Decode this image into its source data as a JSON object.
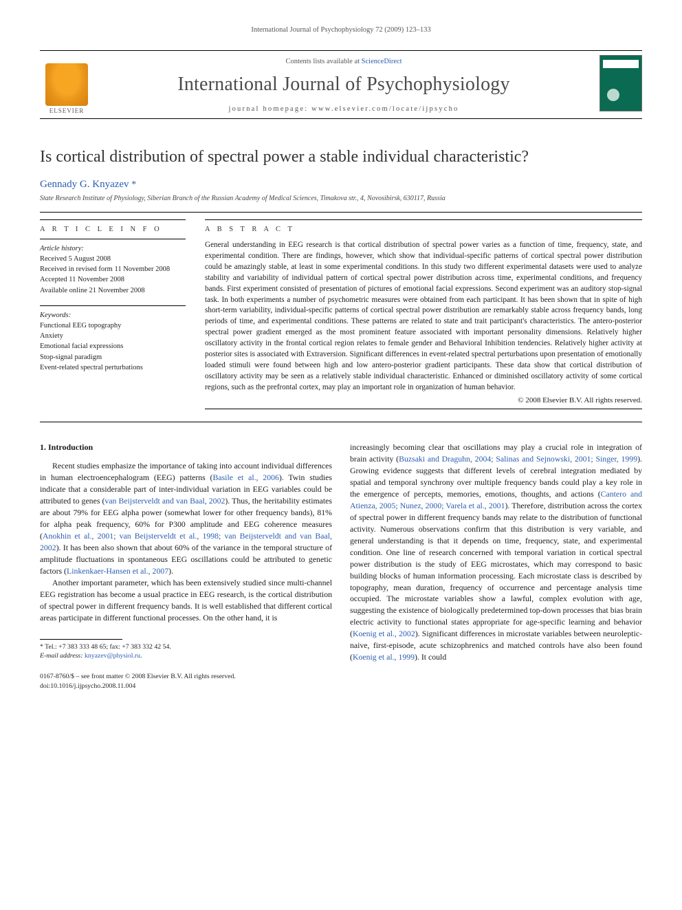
{
  "running_header": "International Journal of Psychophysiology 72 (2009) 123–133",
  "masthead": {
    "contents_prefix": "Contents lists available at ",
    "contents_link": "ScienceDirect",
    "journal": "International Journal of Psychophysiology",
    "homepage_prefix": "journal homepage: ",
    "homepage": "www.elsevier.com/locate/ijpsycho",
    "elsevier_label": "ELSEVIER",
    "logo_color": "#f6a623",
    "cover_color": "#0a6b52"
  },
  "title": "Is cortical distribution of spectral power a stable individual characteristic?",
  "author": "Gennady G. Knyazev",
  "author_marker": "*",
  "affiliation": "State Research Institute of Physiology, Siberian Branch of the Russian Academy of Medical Sciences, Timakova str., 4, Novosibirsk, 630117, Russia",
  "article_info": {
    "heading": "A R T I C L E   I N F O",
    "history_label": "Article history:",
    "history": [
      "Received 5 August 2008",
      "Received in revised form 11 November 2008",
      "Accepted 11 November 2008",
      "Available online 21 November 2008"
    ],
    "keywords_label": "Keywords:",
    "keywords": [
      "Functional EEG topography",
      "Anxiety",
      "Emotional facial expressions",
      "Stop-signal paradigm",
      "Event-related spectral perturbations"
    ]
  },
  "abstract": {
    "heading": "A B S T R A C T",
    "text": "General understanding in EEG research is that cortical distribution of spectral power varies as a function of time, frequency, state, and experimental condition. There are findings, however, which show that individual-specific patterns of cortical spectral power distribution could be amazingly stable, at least in some experimental conditions. In this study two different experimental datasets were used to analyze stability and variability of individual pattern of cortical spectral power distribution across time, experimental conditions, and frequency bands. First experiment consisted of presentation of pictures of emotional facial expressions. Second experiment was an auditory stop-signal task. In both experiments a number of psychometric measures were obtained from each participant. It has been shown that in spite of high short-term variability, individual-specific patterns of cortical spectral power distribution are remarkably stable across frequency bands, long periods of time, and experimental conditions. These patterns are related to state and trait participant's characteristics. The antero-posterior spectral power gradient emerged as the most prominent feature associated with important personality dimensions. Relatively higher oscillatory activity in the frontal cortical region relates to female gender and Behavioral Inhibition tendencies. Relatively higher activity at posterior sites is associated with Extraversion. Significant differences in event-related spectral perturbations upon presentation of emotionally loaded stimuli were found between high and low antero-posterior gradient participants. These data show that cortical distribution of oscillatory activity may be seen as a relatively stable individual characteristic. Enhanced or diminished oscillatory activity of some cortical regions, such as the prefrontal cortex, may play an important role in organization of human behavior.",
    "copyright": "© 2008 Elsevier B.V. All rights reserved."
  },
  "body": {
    "section_heading": "1. Introduction",
    "left_paras": [
      "Recent studies emphasize the importance of taking into account individual differences in human electroencephalogram (EEG) patterns (Basile et al., 2006). Twin studies indicate that a considerable part of inter-individual variation in EEG variables could be attributed to genes (van Beijsterveldt and van Baal, 2002). Thus, the heritability estimates are about 79% for EEG alpha power (somewhat lower for other frequency bands), 81% for alpha peak frequency, 60% for P300 amplitude and EEG coherence measures (Anokhin et al., 2001; van Beijsterveldt et al., 1998; van Beijsterveldt and van Baal, 2002). It has been also shown that about 60% of the variance in the temporal structure of amplitude fluctuations in spontaneous EEG oscillations could be attributed to genetic factors (Linkenkaer-Hansen et al., 2007).",
      "Another important parameter, which has been extensively studied since multi-channel EEG registration has become a usual practice in EEG research, is the cortical distribution of spectral power in different frequency bands. It is well established that different cortical areas participate in different functional processes. On the other hand, it is"
    ],
    "right_text": "increasingly becoming clear that oscillations may play a crucial role in integration of brain activity (Buzsaki and Draguhn, 2004; Salinas and Sejnowski, 2001; Singer, 1999). Growing evidence suggests that different levels of cerebral integration mediated by spatial and temporal synchrony over multiple frequency bands could play a key role in the emergence of percepts, memories, emotions, thoughts, and actions (Cantero and Atienza, 2005; Nunez, 2000; Varela et al., 2001). Therefore, distribution across the cortex of spectral power in different frequency bands may relate to the distribution of functional activity. Numerous observations confirm that this distribution is very variable, and general understanding is that it depends on time, frequency, state, and experimental condition. One line of research concerned with temporal variation in cortical spectral power distribution is the study of EEG microstates, which may correspond to basic building blocks of human information processing. Each microstate class is described by topography, mean duration, frequency of occurrence and percentage analysis time occupied. The microstate variables show a lawful, complex evolution with age, suggesting the existence of biologically predetermined top-down processes that bias brain electric activity to functional states appropriate for age-specific learning and behavior (Koenig et al., 2002). Significant differences in microstate variables between neuroleptic-naive, first-episode, acute schizophrenics and matched controls have also been found (Koenig et al., 1999). It could"
  },
  "footnotes": {
    "tel_label": "* Tel.: ",
    "tel": "+7 383 333 48 65; fax: +7 383 332 42 54.",
    "email_label": "E-mail address: ",
    "email": "knyazev@physiol.ru",
    "email_suffix": "."
  },
  "frontmatter": {
    "issn_line": "0167-8760/$ – see front matter © 2008 Elsevier B.V. All rights reserved.",
    "doi_line": "doi:10.1016/j.ijpsycho.2008.11.004"
  },
  "cites": {
    "basile": "Basile et al., 2006",
    "vanbaal": "van Beijsterveldt and van Baal, 2002",
    "anokhin": "Anokhin et al., 2001; van Beijsterveldt et al., 1998; van Beijsterveldt and van Baal, 2002",
    "linken": "Linkenkaer-Hansen et al., 2007",
    "buzsaki": "Buzsaki and Draguhn, 2004; Salinas and Sejnowski, 2001; Singer, 1999",
    "cantero": "Cantero and Atienza, 2005; Nunez, 2000; Varela et al., 2001",
    "koenig2002": "Koenig et al., 2002",
    "koenig1999": "Koenig et al., 1999"
  }
}
